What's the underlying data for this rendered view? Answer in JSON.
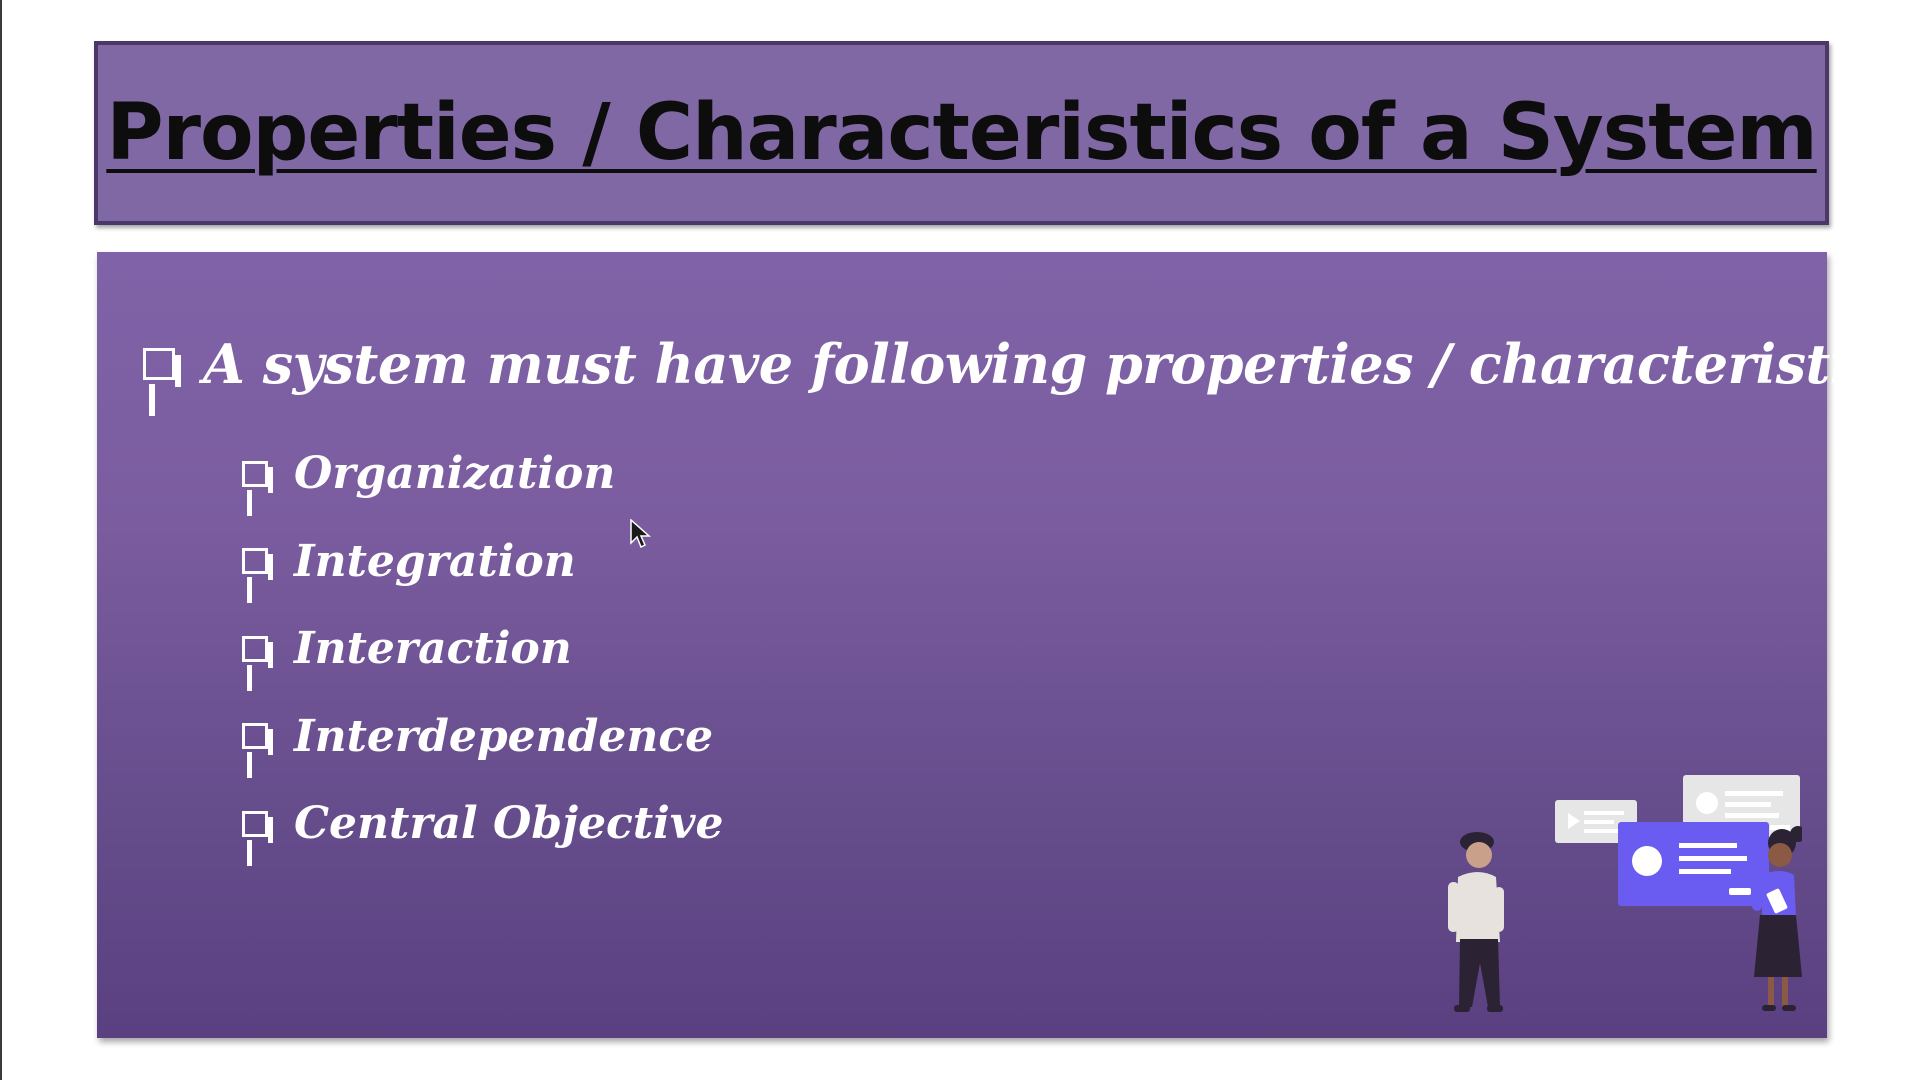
{
  "slide": {
    "title": "Properties / Characteristics of a System",
    "intro": "A system must have following properties / characteristics :",
    "properties": [
      "Organization",
      "Integration",
      "Interaction",
      "Interdependence",
      "Central Objective"
    ]
  },
  "colors": {
    "title_bg": "#8068a4",
    "title_border": "#4a3868",
    "panel_top": "#8062a8",
    "panel_bottom": "#5a4080",
    "text": "#ffffff",
    "card_accent": "#6a5cf0"
  },
  "icons": {
    "bullet": "checkbox-bullet-icon",
    "illustration": "people-with-ui-cards-illustration",
    "cursor": "mouse-pointer-icon"
  }
}
